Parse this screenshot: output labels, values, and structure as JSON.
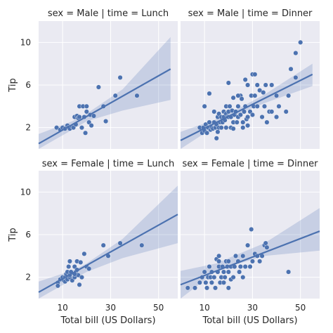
{
  "chart_data": {
    "type": "scatter",
    "layout": "facet-grid 2x2, regression lines with confidence bands",
    "xlabel": "Total bill (US Dollars)",
    "ylabel": "Tip",
    "xlim": [
      0,
      58
    ],
    "ylim": [
      0,
      12
    ],
    "x_ticks": [
      10,
      30,
      50
    ],
    "y_ticks": [
      2,
      6,
      10
    ],
    "grid": true,
    "colors": {
      "points": "#4c72b0",
      "line": "#4c72b0",
      "band": "#4c72b0",
      "panel_bg": "#eaeaf2",
      "grid": "#ffffff"
    },
    "panels": [
      {
        "title": "sex = Male | time = Lunch",
        "regression": {
          "x1": 0,
          "y1": 0.5,
          "x2": 55,
          "y2": 7.5
        },
        "band": {
          "upper": [
            [
              0,
              1.4
            ],
            [
              14,
              2.6
            ],
            [
              20,
              3.3
            ],
            [
              35,
              5.6
            ],
            [
              55,
              10.5
            ]
          ],
          "lower": [
            [
              0,
              -0.3
            ],
            [
              14,
              1.8
            ],
            [
              20,
              2.6
            ],
            [
              35,
              3.6
            ],
            [
              55,
              4.6
            ]
          ]
        },
        "points": [
          [
            7.5,
            2.0
          ],
          [
            9,
            1.8
          ],
          [
            10,
            2.0
          ],
          [
            11,
            1.9
          ],
          [
            12,
            2.2
          ],
          [
            12.5,
            2.0
          ],
          [
            13,
            1.9
          ],
          [
            14,
            2.1
          ],
          [
            14.5,
            2.0
          ],
          [
            15,
            3.0
          ],
          [
            15.5,
            2.3
          ],
          [
            16,
            3.1
          ],
          [
            16.5,
            2.9
          ],
          [
            17,
            3.0
          ],
          [
            17,
            4.0
          ],
          [
            18,
            2.0
          ],
          [
            18.5,
            4.0
          ],
          [
            19,
            3.0
          ],
          [
            19.5,
            1.5
          ],
          [
            20,
            4.0
          ],
          [
            20,
            3.5
          ],
          [
            21,
            2.5
          ],
          [
            21.5,
            3.2
          ],
          [
            22,
            2.2
          ],
          [
            23,
            3.1
          ],
          [
            25,
            5.8
          ],
          [
            27,
            4.0
          ],
          [
            28,
            2.6
          ],
          [
            32,
            5.0
          ],
          [
            34,
            6.7
          ],
          [
            41,
            5.0
          ]
        ]
      },
      {
        "title": "sex = Male | time = Dinner",
        "regression": {
          "x1": 0,
          "y1": 0.8,
          "x2": 55,
          "y2": 7.0
        },
        "band": {
          "upper": [
            [
              0,
              1.6
            ],
            [
              15,
              2.8
            ],
            [
              20,
              3.3
            ],
            [
              35,
              5.1
            ],
            [
              55,
              8.0
            ]
          ],
          "lower": [
            [
              0,
              0.0
            ],
            [
              15,
              2.2
            ],
            [
              20,
              2.9
            ],
            [
              35,
              4.3
            ],
            [
              55,
              5.9
            ]
          ]
        },
        "points": [
          [
            8,
            2.0
          ],
          [
            9,
            1.5
          ],
          [
            9.5,
            2.0
          ],
          [
            10,
            1.7
          ],
          [
            10.5,
            2.3
          ],
          [
            11,
            1.5
          ],
          [
            11.5,
            2.0
          ],
          [
            12,
            2.5
          ],
          [
            12.5,
            1.8
          ],
          [
            13,
            2.0
          ],
          [
            13.5,
            1.9
          ],
          [
            14,
            2.5
          ],
          [
            14,
            3.5
          ],
          [
            14.5,
            2.0
          ],
          [
            15,
            2.3
          ],
          [
            15.5,
            3.0
          ],
          [
            15.5,
            1.6
          ],
          [
            16,
            2.0
          ],
          [
            16,
            3.3
          ],
          [
            16.5,
            2.5
          ],
          [
            17,
            3.0
          ],
          [
            17,
            2.0
          ],
          [
            17.5,
            2.5
          ],
          [
            18,
            3.5
          ],
          [
            18,
            3.0
          ],
          [
            18.5,
            2.7
          ],
          [
            19,
            3.3
          ],
          [
            19,
            4.0
          ],
          [
            19.5,
            3.0
          ],
          [
            20,
            3.0
          ],
          [
            20,
            3.5
          ],
          [
            20.5,
            4.0
          ],
          [
            21,
            2.0
          ],
          [
            21,
            3.0
          ],
          [
            21.5,
            3.6
          ],
          [
            22,
            2.5
          ],
          [
            22,
            4.8
          ],
          [
            22.5,
            3.2
          ],
          [
            23,
            3.5
          ],
          [
            23.5,
            2.5
          ],
          [
            24,
            4.0
          ],
          [
            24,
            3.0
          ],
          [
            25,
            5.0
          ],
          [
            25,
            3.2
          ],
          [
            25.5,
            4.7
          ],
          [
            26,
            2.0
          ],
          [
            26.5,
            3.5
          ],
          [
            27,
            4.0
          ],
          [
            27.5,
            2.8
          ],
          [
            28,
            3.0
          ],
          [
            28,
            6.0
          ],
          [
            29,
            3.5
          ],
          [
            29.5,
            5.0
          ],
          [
            30,
            3.2
          ],
          [
            30.5,
            4.0
          ],
          [
            31,
            5.0
          ],
          [
            32,
            6.0
          ],
          [
            32,
            4.0
          ],
          [
            33,
            5.5
          ],
          [
            34,
            3.0
          ],
          [
            34.5,
            5.3
          ],
          [
            35,
            4.0
          ],
          [
            35.5,
            6.0
          ],
          [
            36,
            2.5
          ],
          [
            37,
            3.5
          ],
          [
            38,
            3.5
          ],
          [
            40,
            5.0
          ],
          [
            41,
            4.0
          ],
          [
            44,
            3.5
          ],
          [
            45,
            5.0
          ],
          [
            46,
            7.5
          ],
          [
            48,
            6.7
          ],
          [
            48,
            9.0
          ],
          [
            50,
            10.0
          ],
          [
            10,
            4.0
          ],
          [
            20,
            6.2
          ],
          [
            12,
            5.2
          ],
          [
            24,
            5.0
          ],
          [
            30,
            7.0
          ],
          [
            28,
            2.2
          ],
          [
            40,
            3.0
          ],
          [
            31,
            7.0
          ],
          [
            38,
            6.0
          ],
          [
            15,
            1.0
          ],
          [
            26,
            2.5
          ],
          [
            19,
            2.0
          ],
          [
            22,
            1.9
          ],
          [
            27,
            6.5
          ]
        ]
      },
      {
        "title": "sex = Female | time = Lunch",
        "regression": {
          "x1": 0,
          "y1": 0.6,
          "x2": 58,
          "y2": 7.9
        },
        "band": {
          "upper": [
            [
              0,
              1.6
            ],
            [
              15,
              2.7
            ],
            [
              20,
              3.3
            ],
            [
              35,
              5.6
            ],
            [
              58,
              10.6
            ]
          ],
          "lower": [
            [
              0,
              -0.4
            ],
            [
              15,
              1.9
            ],
            [
              20,
              2.5
            ],
            [
              35,
              3.8
            ],
            [
              58,
              5.2
            ]
          ]
        },
        "points": [
          [
            8,
            1.5
          ],
          [
            8,
            1.2
          ],
          [
            9,
            1.8
          ],
          [
            10,
            2.0
          ],
          [
            10.5,
            1.7
          ],
          [
            11,
            2.0
          ],
          [
            11,
            1.6
          ],
          [
            11.5,
            2.3
          ],
          [
            12,
            1.8
          ],
          [
            12,
            2.5
          ],
          [
            12.5,
            3.0
          ],
          [
            13,
            2.0
          ],
          [
            13,
            2.2
          ],
          [
            13,
            3.5
          ],
          [
            13.5,
            2.5
          ],
          [
            14,
            1.7
          ],
          [
            15,
            2.0
          ],
          [
            15,
            3.0
          ],
          [
            15.5,
            2.5
          ],
          [
            16,
            2.7
          ],
          [
            16,
            3.5
          ],
          [
            16.5,
            2.2
          ],
          [
            17,
            1.3
          ],
          [
            17.5,
            3.4
          ],
          [
            18,
            2.0
          ],
          [
            19,
            4.2
          ],
          [
            20,
            3.0
          ],
          [
            21,
            2.8
          ],
          [
            27,
            5.0
          ],
          [
            29,
            4.0
          ],
          [
            34,
            5.2
          ],
          [
            43,
            5.0
          ],
          [
            15,
            2.3
          ]
        ]
      },
      {
        "title": "sex = Female | time = Dinner",
        "regression": {
          "x1": 0,
          "y1": 1.3,
          "x2": 60,
          "y2": 6.5
        },
        "band": {
          "upper": [
            [
              0,
              2.6
            ],
            [
              15,
              3.3
            ],
            [
              20,
              3.8
            ],
            [
              35,
              5.2
            ],
            [
              60,
              8.5
            ]
          ],
          "lower": [
            [
              0,
              0.0
            ],
            [
              15,
              2.6
            ],
            [
              20,
              3.0
            ],
            [
              35,
              4.0
            ],
            [
              60,
              4.5
            ]
          ]
        },
        "points": [
          [
            3,
            1.0
          ],
          [
            6,
            1.0
          ],
          [
            8,
            1.5
          ],
          [
            9,
            2.0
          ],
          [
            10,
            2.5
          ],
          [
            10.5,
            1.5
          ],
          [
            11,
            1.0
          ],
          [
            11.5,
            2.0
          ],
          [
            12,
            3.0
          ],
          [
            12.5,
            2.0
          ],
          [
            13,
            1.5
          ],
          [
            13,
            2.5
          ],
          [
            14,
            2.0
          ],
          [
            14.5,
            1.0
          ],
          [
            15,
            3.7
          ],
          [
            15.5,
            2.5
          ],
          [
            16,
            3.0
          ],
          [
            16,
            3.5
          ],
          [
            16.5,
            1.5
          ],
          [
            17,
            2.0
          ],
          [
            17.5,
            3.0
          ],
          [
            18,
            1.5
          ],
          [
            18.5,
            2.0
          ],
          [
            19,
            3.5
          ],
          [
            19.5,
            3.0
          ],
          [
            20,
            3.5
          ],
          [
            20,
            2.5
          ],
          [
            21,
            3.0
          ],
          [
            21,
            1.8
          ],
          [
            22,
            2.0
          ],
          [
            22.5,
            3.0
          ],
          [
            23,
            4.0
          ],
          [
            24,
            3.5
          ],
          [
            24.5,
            2.5
          ],
          [
            25,
            3.0
          ],
          [
            26,
            2.0
          ],
          [
            26,
            4.0
          ],
          [
            27,
            3.0
          ],
          [
            28,
            5.0
          ],
          [
            29,
            3.0
          ],
          [
            29.5,
            6.5
          ],
          [
            31,
            4.2
          ],
          [
            32,
            4.0
          ],
          [
            33,
            3.5
          ],
          [
            34,
            4.0
          ],
          [
            35,
            5.0
          ],
          [
            35.5,
            5.2
          ],
          [
            36,
            4.8
          ],
          [
            45,
            2.5
          ],
          [
            20,
            1.0
          ],
          [
            18,
            2.5
          ],
          [
            12,
            3.0
          ],
          [
            16,
            4.0
          ],
          [
            30,
            3.5
          ]
        ]
      }
    ]
  }
}
